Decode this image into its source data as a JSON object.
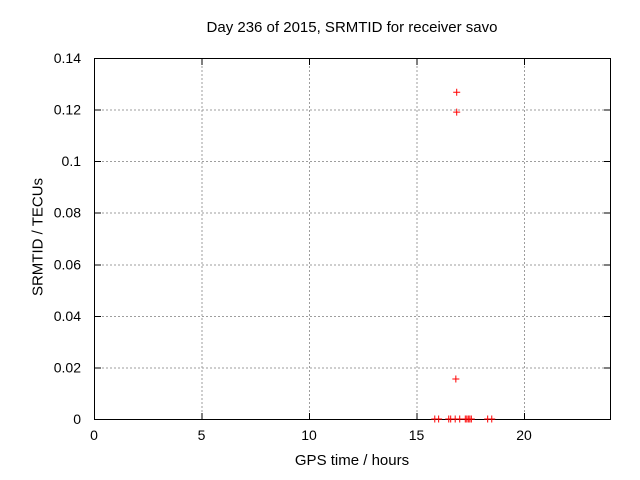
{
  "title": "Day 236 of 2015, SRMTID for receiver savo",
  "colors": {
    "background": "#ffffff",
    "text": "#000000",
    "border": "#000000",
    "grid": "#9e9e9e",
    "marker": "#ff0000"
  },
  "chart_data": {
    "type": "scatter",
    "title": "Day 236 of 2015, SRMTID for receiver savo",
    "xlabel": "GPS time / hours",
    "ylabel": "SRMTID / TECUs",
    "xlim": [
      0,
      24
    ],
    "ylim": [
      0,
      0.14
    ],
    "xticks": [
      0,
      5,
      10,
      15,
      20
    ],
    "xtick_labels": [
      "0",
      "5",
      "10",
      "15",
      "20"
    ],
    "yticks": [
      0,
      0.02,
      0.04,
      0.06,
      0.08,
      0.1,
      0.12,
      0.14
    ],
    "ytick_labels": [
      "0",
      "0.02",
      "0.04",
      "0.06",
      "0.08",
      "0.1",
      "0.12",
      "0.14"
    ],
    "grid": true,
    "legend": false,
    "marker": "plus",
    "marker_size": 7,
    "series": [
      {
        "name": "SRMTID",
        "color": "#ff0000",
        "points": [
          [
            15.85,
            0
          ],
          [
            16.03,
            0
          ],
          [
            16.5,
            0
          ],
          [
            16.59,
            0
          ],
          [
            16.8,
            0
          ],
          [
            17.01,
            0
          ],
          [
            17.27,
            0
          ],
          [
            17.34,
            0
          ],
          [
            17.41,
            0
          ],
          [
            17.48,
            0
          ],
          [
            17.55,
            0
          ],
          [
            18.31,
            0
          ],
          [
            18.5,
            0
          ],
          [
            16.83,
            0.0155
          ],
          [
            16.87,
            0.119
          ],
          [
            16.87,
            0.1267
          ]
        ]
      }
    ]
  }
}
